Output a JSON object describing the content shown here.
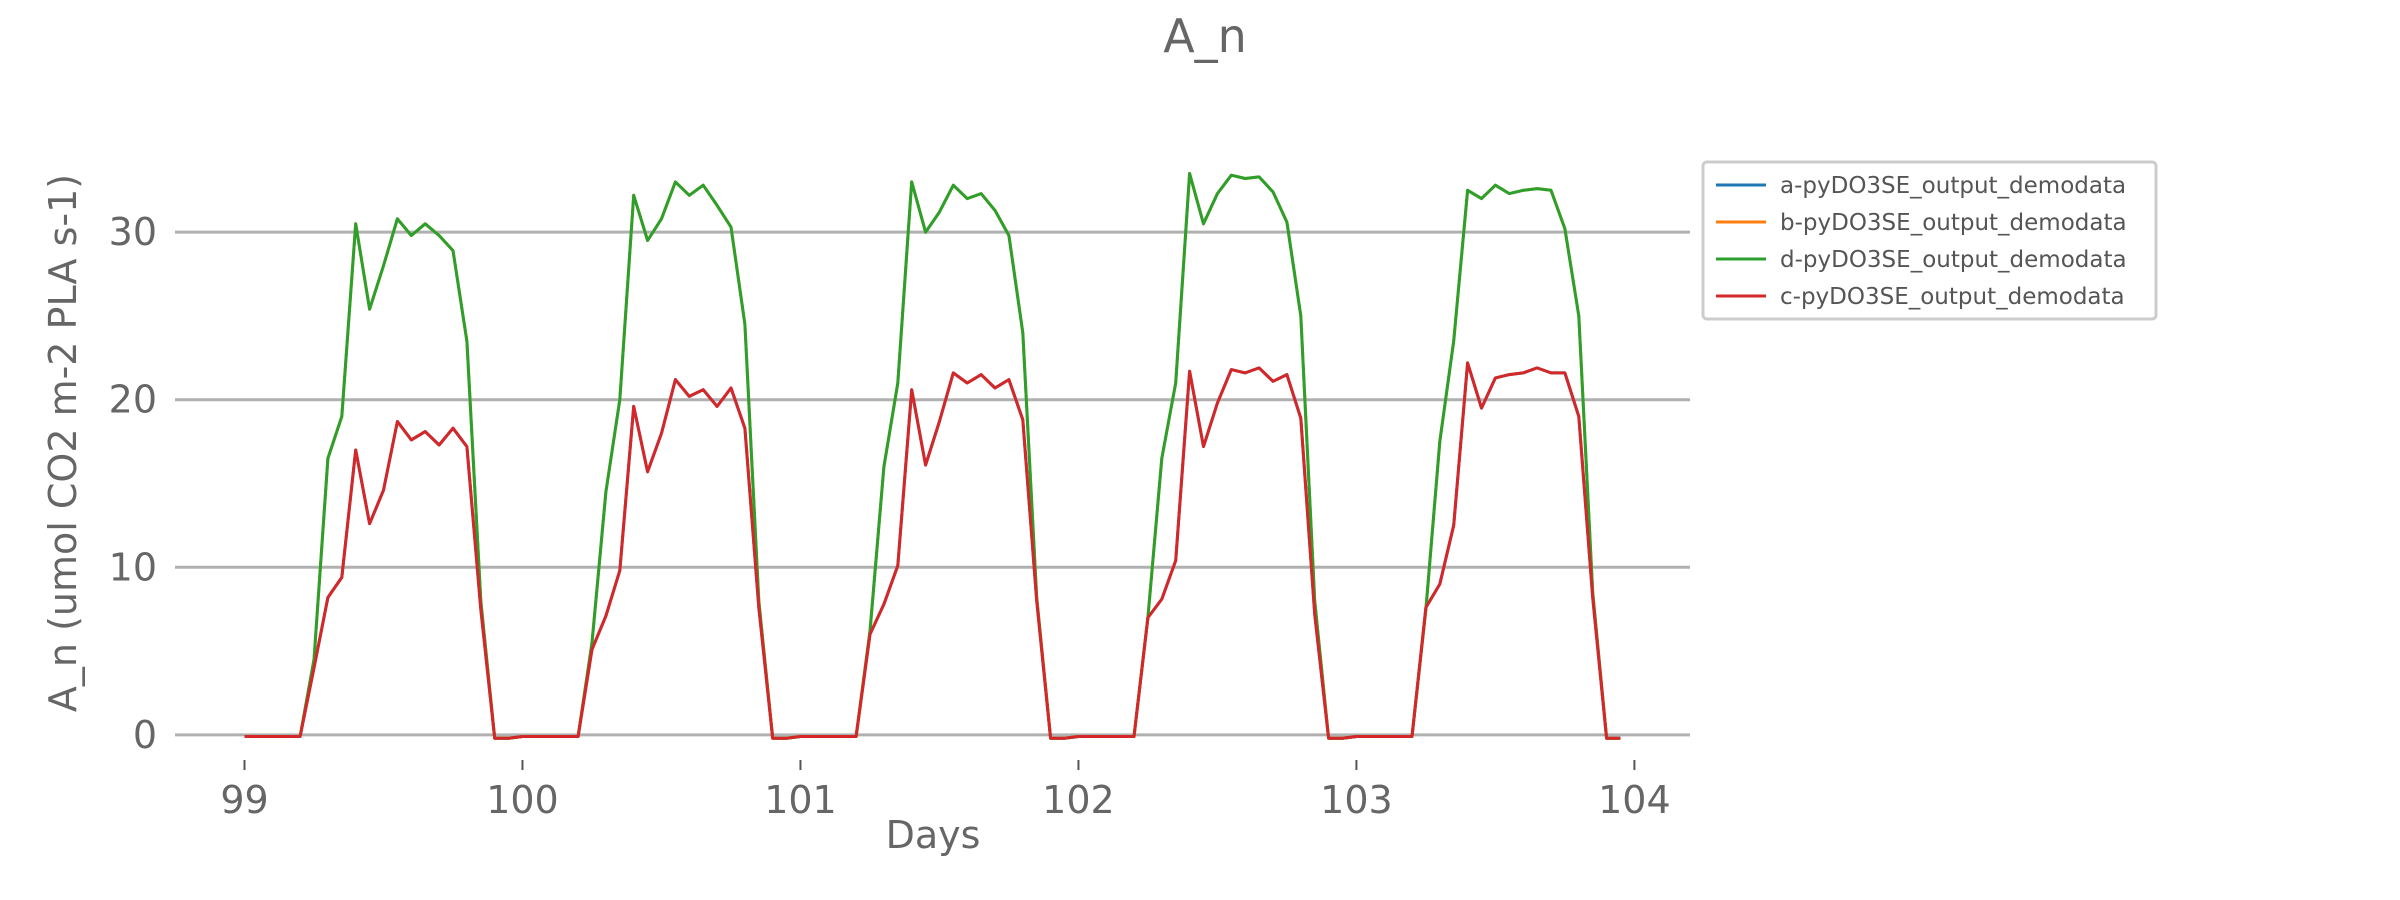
{
  "chart_data": {
    "type": "line",
    "title": "A_n",
    "xlabel": "Days",
    "ylabel": "A_n (umol CO2 m-2 PLA s-1)",
    "xlim": [
      98.75,
      104.2
    ],
    "ylim": [
      -1.5,
      35.5
    ],
    "xticks": [
      99,
      100,
      101,
      102,
      103,
      104
    ],
    "yticks": [
      0,
      10,
      20,
      30
    ],
    "grid": "horizontal",
    "legend_position": "outside-right-top",
    "series": [
      {
        "name": "a-pyDO3SE_output_demodata",
        "color": "#1f77b4",
        "x": [
          99.0,
          99.05,
          99.1,
          99.15,
          99.2,
          99.25,
          99.3,
          99.35,
          99.4,
          99.45,
          99.5,
          99.55,
          99.6,
          99.65,
          99.7,
          99.75,
          99.8,
          99.85,
          99.9,
          99.95,
          100.0,
          100.05,
          100.1,
          100.15,
          100.2,
          100.25,
          100.3,
          100.35,
          100.4,
          100.45,
          100.5,
          100.55,
          100.6,
          100.65,
          100.7,
          100.75,
          100.8,
          100.85,
          100.9,
          100.95,
          101.0,
          101.05,
          101.1,
          101.15,
          101.2,
          101.25,
          101.3,
          101.35,
          101.4,
          101.45,
          101.5,
          101.55,
          101.6,
          101.65,
          101.7,
          101.75,
          101.8,
          101.85,
          101.9,
          101.95,
          102.0,
          102.05,
          102.1,
          102.15,
          102.2,
          102.25,
          102.3,
          102.35,
          102.4,
          102.45,
          102.5,
          102.55,
          102.6,
          102.65,
          102.7,
          102.75,
          102.8,
          102.85,
          102.9,
          102.95,
          103.0,
          103.05,
          103.1,
          103.15,
          103.2,
          103.25,
          103.3,
          103.35,
          103.4,
          103.45,
          103.5,
          103.55,
          103.6,
          103.65,
          103.7,
          103.75,
          103.8,
          103.85,
          103.9,
          103.95
        ],
        "y": [
          -0.1,
          -0.1,
          -0.1,
          -0.1,
          -0.1,
          4.0,
          8.2,
          9.4,
          17.0,
          12.6,
          14.6,
          18.7,
          17.6,
          18.1,
          17.3,
          18.3,
          17.2,
          7.5,
          -0.2,
          -0.2,
          -0.1,
          -0.1,
          -0.1,
          -0.1,
          -0.1,
          5.1,
          7.1,
          9.8,
          19.6,
          15.7,
          18.0,
          21.2,
          20.2,
          20.6,
          19.6,
          20.7,
          18.3,
          7.6,
          -0.2,
          -0.2,
          -0.1,
          -0.1,
          -0.1,
          -0.1,
          -0.1,
          6.0,
          7.8,
          10.1,
          20.6,
          16.1,
          18.7,
          21.6,
          21.0,
          21.5,
          20.7,
          21.2,
          18.8,
          8.0,
          -0.2,
          -0.2,
          -0.1,
          -0.1,
          -0.1,
          -0.1,
          -0.1,
          7.0,
          8.1,
          10.4,
          21.7,
          17.2,
          19.8,
          21.8,
          21.6,
          21.9,
          21.1,
          21.5,
          18.9,
          7.2,
          -0.2,
          -0.2,
          -0.1,
          -0.1,
          -0.1,
          -0.1,
          -0.1,
          7.6,
          9.0,
          12.5,
          22.2,
          19.5,
          21.3,
          21.5,
          21.6,
          21.9,
          21.6,
          21.6,
          19.0,
          8.2,
          -0.2,
          -0.2
        ]
      },
      {
        "name": "b-pyDO3SE_output_demodata",
        "color": "#ff7f0e",
        "x": [
          99.0,
          99.05,
          99.1,
          99.15,
          99.2,
          99.25,
          99.3,
          99.35,
          99.4,
          99.45,
          99.5,
          99.55,
          99.6,
          99.65,
          99.7,
          99.75,
          99.8,
          99.85,
          99.9,
          99.95,
          100.0,
          100.05,
          100.1,
          100.15,
          100.2,
          100.25,
          100.3,
          100.35,
          100.4,
          100.45,
          100.5,
          100.55,
          100.6,
          100.65,
          100.7,
          100.75,
          100.8,
          100.85,
          100.9,
          100.95,
          101.0,
          101.05,
          101.1,
          101.15,
          101.2,
          101.25,
          101.3,
          101.35,
          101.4,
          101.45,
          101.5,
          101.55,
          101.6,
          101.65,
          101.7,
          101.75,
          101.8,
          101.85,
          101.9,
          101.95,
          102.0,
          102.05,
          102.1,
          102.15,
          102.2,
          102.25,
          102.3,
          102.35,
          102.4,
          102.45,
          102.5,
          102.55,
          102.6,
          102.65,
          102.7,
          102.75,
          102.8,
          102.85,
          102.9,
          102.95,
          103.0,
          103.05,
          103.1,
          103.15,
          103.2,
          103.25,
          103.3,
          103.35,
          103.4,
          103.45,
          103.5,
          103.55,
          103.6,
          103.65,
          103.7,
          103.75,
          103.8,
          103.85,
          103.9,
          103.95
        ],
        "y": [
          -0.1,
          -0.1,
          -0.1,
          -0.1,
          -0.1,
          4.5,
          16.5,
          19.0,
          30.5,
          25.4,
          28.0,
          30.8,
          29.8,
          30.5,
          29.8,
          28.9,
          23.5,
          8.0,
          -0.2,
          -0.2,
          -0.1,
          -0.1,
          -0.1,
          -0.1,
          -0.1,
          5.5,
          14.5,
          20.0,
          32.2,
          29.5,
          30.8,
          33.0,
          32.2,
          32.8,
          31.6,
          30.3,
          24.5,
          8.0,
          -0.2,
          -0.2,
          -0.1,
          -0.1,
          -0.1,
          -0.1,
          -0.1,
          6.2,
          16.0,
          21.0,
          33.0,
          30.0,
          31.2,
          32.8,
          32.0,
          32.3,
          31.3,
          29.8,
          24.0,
          8.2,
          -0.2,
          -0.2,
          -0.1,
          -0.1,
          -0.1,
          -0.1,
          -0.1,
          7.0,
          16.5,
          21.0,
          33.5,
          30.5,
          32.3,
          33.4,
          33.2,
          33.3,
          32.4,
          30.6,
          25.0,
          8.0,
          -0.2,
          -0.2,
          -0.1,
          -0.1,
          -0.1,
          -0.1,
          -0.1,
          7.5,
          17.5,
          23.5,
          32.5,
          32.0,
          32.8,
          32.3,
          32.5,
          32.6,
          32.5,
          30.2,
          25.0,
          8.5,
          -0.2,
          -0.2
        ]
      },
      {
        "name": "d-pyDO3SE_output_demodata",
        "color": "#2ca02c",
        "x": [
          99.0,
          99.05,
          99.1,
          99.15,
          99.2,
          99.25,
          99.3,
          99.35,
          99.4,
          99.45,
          99.5,
          99.55,
          99.6,
          99.65,
          99.7,
          99.75,
          99.8,
          99.85,
          99.9,
          99.95,
          100.0,
          100.05,
          100.1,
          100.15,
          100.2,
          100.25,
          100.3,
          100.35,
          100.4,
          100.45,
          100.5,
          100.55,
          100.6,
          100.65,
          100.7,
          100.75,
          100.8,
          100.85,
          100.9,
          100.95,
          101.0,
          101.05,
          101.1,
          101.15,
          101.2,
          101.25,
          101.3,
          101.35,
          101.4,
          101.45,
          101.5,
          101.55,
          101.6,
          101.65,
          101.7,
          101.75,
          101.8,
          101.85,
          101.9,
          101.95,
          102.0,
          102.05,
          102.1,
          102.15,
          102.2,
          102.25,
          102.3,
          102.35,
          102.4,
          102.45,
          102.5,
          102.55,
          102.6,
          102.65,
          102.7,
          102.75,
          102.8,
          102.85,
          102.9,
          102.95,
          103.0,
          103.05,
          103.1,
          103.15,
          103.2,
          103.25,
          103.3,
          103.35,
          103.4,
          103.45,
          103.5,
          103.55,
          103.6,
          103.65,
          103.7,
          103.75,
          103.8,
          103.85,
          103.9,
          103.95
        ],
        "y": [
          -0.1,
          -0.1,
          -0.1,
          -0.1,
          -0.1,
          4.5,
          16.5,
          19.0,
          30.5,
          25.4,
          28.0,
          30.8,
          29.8,
          30.5,
          29.8,
          28.9,
          23.5,
          8.0,
          -0.2,
          -0.2,
          -0.1,
          -0.1,
          -0.1,
          -0.1,
          -0.1,
          5.5,
          14.5,
          20.0,
          32.2,
          29.5,
          30.8,
          33.0,
          32.2,
          32.8,
          31.6,
          30.3,
          24.5,
          8.0,
          -0.2,
          -0.2,
          -0.1,
          -0.1,
          -0.1,
          -0.1,
          -0.1,
          6.2,
          16.0,
          21.0,
          33.0,
          30.0,
          31.2,
          32.8,
          32.0,
          32.3,
          31.3,
          29.8,
          24.0,
          8.2,
          -0.2,
          -0.2,
          -0.1,
          -0.1,
          -0.1,
          -0.1,
          -0.1,
          7.0,
          16.5,
          21.0,
          33.5,
          30.5,
          32.3,
          33.4,
          33.2,
          33.3,
          32.4,
          30.6,
          25.0,
          8.0,
          -0.2,
          -0.2,
          -0.1,
          -0.1,
          -0.1,
          -0.1,
          -0.1,
          7.5,
          17.5,
          23.5,
          32.5,
          32.0,
          32.8,
          32.3,
          32.5,
          32.6,
          32.5,
          30.2,
          25.0,
          8.5,
          -0.2,
          -0.2
        ]
      },
      {
        "name": "c-pyDO3SE_output_demodata",
        "color": "#d62728",
        "x": [
          99.0,
          99.05,
          99.1,
          99.15,
          99.2,
          99.25,
          99.3,
          99.35,
          99.4,
          99.45,
          99.5,
          99.55,
          99.6,
          99.65,
          99.7,
          99.75,
          99.8,
          99.85,
          99.9,
          99.95,
          100.0,
          100.05,
          100.1,
          100.15,
          100.2,
          100.25,
          100.3,
          100.35,
          100.4,
          100.45,
          100.5,
          100.55,
          100.6,
          100.65,
          100.7,
          100.75,
          100.8,
          100.85,
          100.9,
          100.95,
          101.0,
          101.05,
          101.1,
          101.15,
          101.2,
          101.25,
          101.3,
          101.35,
          101.4,
          101.45,
          101.5,
          101.55,
          101.6,
          101.65,
          101.7,
          101.75,
          101.8,
          101.85,
          101.9,
          101.95,
          102.0,
          102.05,
          102.1,
          102.15,
          102.2,
          102.25,
          102.3,
          102.35,
          102.4,
          102.45,
          102.5,
          102.55,
          102.6,
          102.65,
          102.7,
          102.75,
          102.8,
          102.85,
          102.9,
          102.95,
          103.0,
          103.05,
          103.1,
          103.15,
          103.2,
          103.25,
          103.3,
          103.35,
          103.4,
          103.45,
          103.5,
          103.55,
          103.6,
          103.65,
          103.7,
          103.75,
          103.8,
          103.85,
          103.9,
          103.95
        ],
        "y": [
          -0.1,
          -0.1,
          -0.1,
          -0.1,
          -0.1,
          4.0,
          8.2,
          9.4,
          17.0,
          12.6,
          14.6,
          18.7,
          17.6,
          18.1,
          17.3,
          18.3,
          17.2,
          7.5,
          -0.2,
          -0.2,
          -0.1,
          -0.1,
          -0.1,
          -0.1,
          -0.1,
          5.1,
          7.1,
          9.8,
          19.6,
          15.7,
          18.0,
          21.2,
          20.2,
          20.6,
          19.6,
          20.7,
          18.3,
          7.6,
          -0.2,
          -0.2,
          -0.1,
          -0.1,
          -0.1,
          -0.1,
          -0.1,
          6.0,
          7.8,
          10.1,
          20.6,
          16.1,
          18.7,
          21.6,
          21.0,
          21.5,
          20.7,
          21.2,
          18.8,
          8.0,
          -0.2,
          -0.2,
          -0.1,
          -0.1,
          -0.1,
          -0.1,
          -0.1,
          7.0,
          8.1,
          10.4,
          21.7,
          17.2,
          19.8,
          21.8,
          21.6,
          21.9,
          21.1,
          21.5,
          18.9,
          7.2,
          -0.2,
          -0.2,
          -0.1,
          -0.1,
          -0.1,
          -0.1,
          -0.1,
          7.6,
          9.0,
          12.5,
          22.2,
          19.5,
          21.3,
          21.5,
          21.6,
          21.9,
          21.6,
          21.6,
          19.0,
          8.2,
          -0.2,
          -0.2
        ]
      }
    ]
  }
}
